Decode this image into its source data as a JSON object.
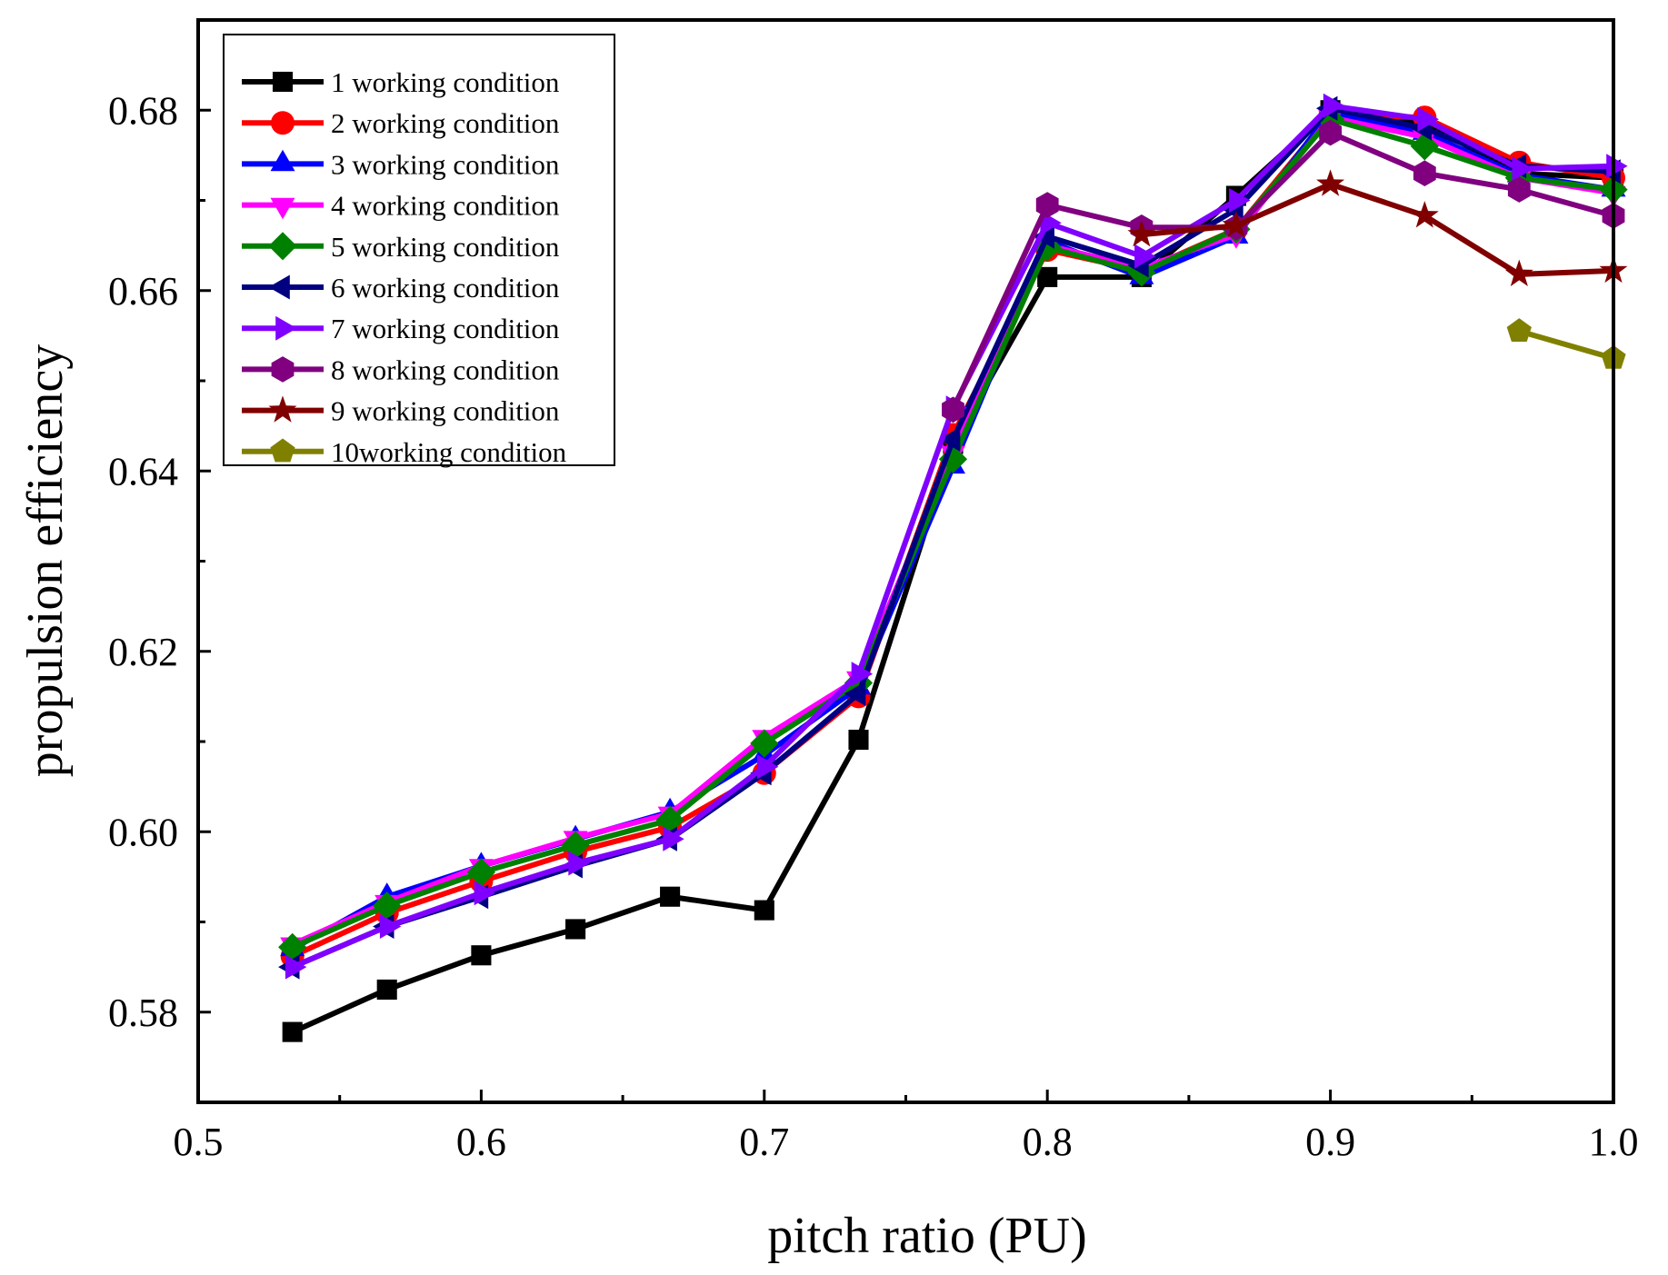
{
  "chart_data": {
    "type": "line",
    "xlabel": "pitch ratio (PU)",
    "ylabel": "propulsion efficiency",
    "xlim": [
      0.5,
      1.0
    ],
    "ylim": [
      0.57,
      0.69
    ],
    "x_ticks": [
      0.5,
      0.6,
      0.7,
      0.8,
      0.9,
      1.0
    ],
    "x_tick_labels": [
      "0.5",
      "0.6",
      "0.7",
      "0.8",
      "0.9",
      "1.0"
    ],
    "y_ticks": [
      0.58,
      0.6,
      0.62,
      0.64,
      0.66,
      0.68
    ],
    "y_tick_labels": [
      "0.58",
      "0.60",
      "0.62",
      "0.64",
      "0.66",
      "0.68"
    ],
    "x_minor_ticks": [
      0.55,
      0.65,
      0.75,
      0.85,
      0.95
    ],
    "y_minor_ticks": [
      0.57,
      0.59,
      0.61,
      0.63,
      0.65,
      0.67
    ],
    "grid": false,
    "legend_position": "top-left",
    "x": [
      0.5333,
      0.5667,
      0.6,
      0.6333,
      0.6667,
      0.7,
      0.7333,
      0.7667,
      0.8,
      0.8333,
      0.8667,
      0.9,
      0.9333,
      0.9667,
      1.0
    ],
    "series": [
      {
        "name": "1 working condition",
        "color": "#000000",
        "marker": "square",
        "values": [
          0.5778,
          0.5825,
          0.5863,
          0.5892,
          0.5928,
          0.5913,
          0.6102,
          0.643,
          0.6615,
          0.6615,
          0.6705,
          0.68,
          0.6785,
          0.673,
          0.6725
        ]
      },
      {
        "name": "2 working condition",
        "color": "#ff0000",
        "marker": "circle",
        "values": [
          0.5862,
          0.591,
          0.5945,
          0.5978,
          0.6005,
          0.6065,
          0.615,
          0.644,
          0.6645,
          0.6622,
          0.6668,
          0.6795,
          0.6792,
          0.6742,
          0.6725
        ]
      },
      {
        "name": "3 working condition",
        "color": "#0000ff",
        "marker": "triangle-up",
        "values": [
          0.587,
          0.5928,
          0.5962,
          0.5992,
          0.6022,
          0.6085,
          0.616,
          0.6405,
          0.6655,
          0.6615,
          0.666,
          0.6798,
          0.6775,
          0.6728,
          0.6712
        ]
      },
      {
        "name": "4 working condition",
        "color": "#ff00ff",
        "marker": "triangle-down",
        "values": [
          0.5875,
          0.5922,
          0.5962,
          0.5993,
          0.602,
          0.6105,
          0.617,
          0.642,
          0.665,
          0.6625,
          0.6662,
          0.6792,
          0.677,
          0.6725,
          0.6708
        ]
      },
      {
        "name": "5 working condition",
        "color": "#008000",
        "marker": "diamond",
        "values": [
          0.5872,
          0.5918,
          0.5955,
          0.5985,
          0.6013,
          0.6098,
          0.6165,
          0.6413,
          0.6648,
          0.662,
          0.6668,
          0.679,
          0.676,
          0.6725,
          0.6712
        ]
      },
      {
        "name": "6 working condition",
        "color": "#000080",
        "marker": "triangle-left",
        "values": [
          0.585,
          0.5895,
          0.5928,
          0.5962,
          0.5992,
          0.6065,
          0.6153,
          0.6435,
          0.666,
          0.6628,
          0.669,
          0.6802,
          0.678,
          0.6738,
          0.6732
        ]
      },
      {
        "name": "7 working condition",
        "color": "#8000ff",
        "marker": "triangle-right",
        "values": [
          0.585,
          0.5895,
          0.5932,
          0.5965,
          0.5992,
          0.6072,
          0.6175,
          0.647,
          0.6675,
          0.6638,
          0.67,
          0.6805,
          0.679,
          0.6735,
          0.6738
        ]
      },
      {
        "name": "8 working condition",
        "color": "#800080",
        "marker": "hexagon",
        "values": [
          null,
          null,
          null,
          null,
          null,
          null,
          null,
          0.6468,
          0.6695,
          0.667,
          0.667,
          0.6775,
          0.673,
          0.6712,
          0.6683
        ]
      },
      {
        "name": "9 working condition",
        "color": "#800000",
        "marker": "star",
        "values": [
          null,
          null,
          null,
          null,
          null,
          null,
          null,
          null,
          null,
          0.6662,
          0.6672,
          0.6718,
          0.6683,
          0.6618,
          0.6622
        ]
      },
      {
        "name": "10working condition",
        "color": "#808000",
        "marker": "pentagon",
        "values": [
          null,
          null,
          null,
          null,
          null,
          null,
          null,
          null,
          null,
          null,
          null,
          null,
          null,
          0.6555,
          0.6525
        ]
      }
    ]
  }
}
